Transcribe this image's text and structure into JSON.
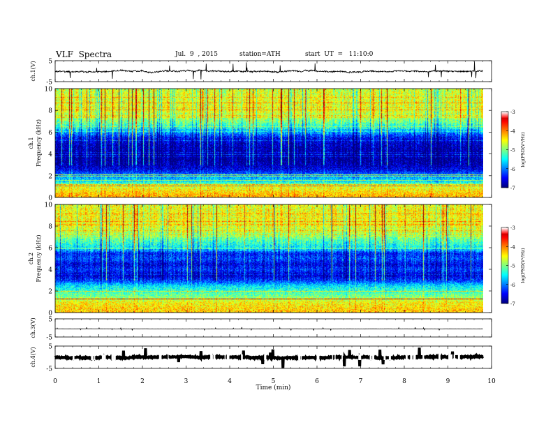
{
  "header": {
    "title": "VLF  Spectra",
    "date": "Jul.  9  , 2015",
    "station": "station=ATH",
    "start": "start  UT  =   11:10:0"
  },
  "colors": {
    "jet": [
      "#000080",
      "#0000ff",
      "#0080ff",
      "#00ffff",
      "#80ff80",
      "#ffff00",
      "#ff8000",
      "#ff0000",
      "#800000"
    ],
    "trace": "#000000",
    "frame": "#000000"
  },
  "colorbar": {
    "label": "log(PSD(V²/Hz)",
    "ticks": [
      "-3",
      "-4",
      "-5",
      "-6",
      "-7"
    ],
    "range": [
      -7,
      -3
    ]
  },
  "chart_data": [
    {
      "type": "line",
      "name_label": "ch.1(V)",
      "ylim": [
        -5,
        5
      ],
      "yticks": [
        "5",
        "-5"
      ],
      "x_unit": "min",
      "xlim": [
        0,
        10
      ],
      "data_end_min": 9.8,
      "baseline_v": 0.0,
      "noise_amplitude_v": 0.6
    },
    {
      "type": "heatmap",
      "channel_label": "ch.1",
      "ylabel": "Frequency  (kHz)",
      "ylim": [
        0,
        10
      ],
      "yticks": [
        "0",
        "2",
        "4",
        "6",
        "8",
        "10"
      ],
      "xlim": [
        0,
        10
      ],
      "data_end_min": 9.8,
      "clim": [
        -7,
        -3
      ],
      "profile_khz": [
        0.2,
        0.6,
        1.0,
        1.5,
        2.0,
        2.5,
        3.0,
        3.5,
        4.0,
        4.5,
        5.0,
        5.5,
        6.0,
        7.0,
        8.0,
        9.0,
        10.0
      ],
      "profile_log_psd": [
        -4.2,
        -4.4,
        -4.6,
        -5.6,
        -5.9,
        -6.5,
        -6.8,
        -6.9,
        -6.9,
        -6.8,
        -6.7,
        -6.5,
        -5.9,
        -5.0,
        -4.6,
        -4.6,
        -4.7
      ]
    },
    {
      "type": "heatmap",
      "channel_label": "ch.2",
      "ylabel": "Frequency  (kHz)",
      "ylim": [
        0,
        10
      ],
      "yticks": [
        "0",
        "2",
        "4",
        "6",
        "8",
        "10"
      ],
      "xlim": [
        0,
        10
      ],
      "data_end_min": 9.8,
      "clim": [
        -7,
        -3
      ],
      "profile_khz": [
        0.2,
        0.6,
        1.0,
        1.5,
        2.0,
        2.5,
        3.0,
        3.5,
        4.0,
        4.5,
        5.0,
        5.5,
        6.0,
        7.0,
        8.0,
        9.0,
        10.0
      ],
      "profile_log_psd": [
        -4.3,
        -4.4,
        -4.5,
        -5.0,
        -5.3,
        -5.6,
        -6.3,
        -6.7,
        -6.3,
        -6.6,
        -6.2,
        -6.4,
        -5.6,
        -5.0,
        -4.6,
        -4.5,
        -4.6
      ]
    },
    {
      "type": "line",
      "name_label": "ch.3(V)",
      "ylim": [
        -5,
        5
      ],
      "yticks": [
        "5",
        "-5"
      ],
      "xlim": [
        0,
        10
      ],
      "data_end_min": 9.8,
      "baseline_v": -0.5,
      "noise_amplitude_v": 0.05
    },
    {
      "type": "line",
      "name_label": "ch.4(V)",
      "ylim": [
        -5,
        5
      ],
      "yticks": [
        "5",
        "-5"
      ],
      "xlim": [
        0,
        10
      ],
      "data_end_min": 9.8,
      "baseline_v": 0.0,
      "noise_amplitude_v": 0.4
    }
  ],
  "xaxis": {
    "label": "Time  (min)",
    "ticks": [
      "0",
      "1",
      "2",
      "3",
      "4",
      "5",
      "6",
      "7",
      "8",
      "9",
      "10"
    ]
  }
}
